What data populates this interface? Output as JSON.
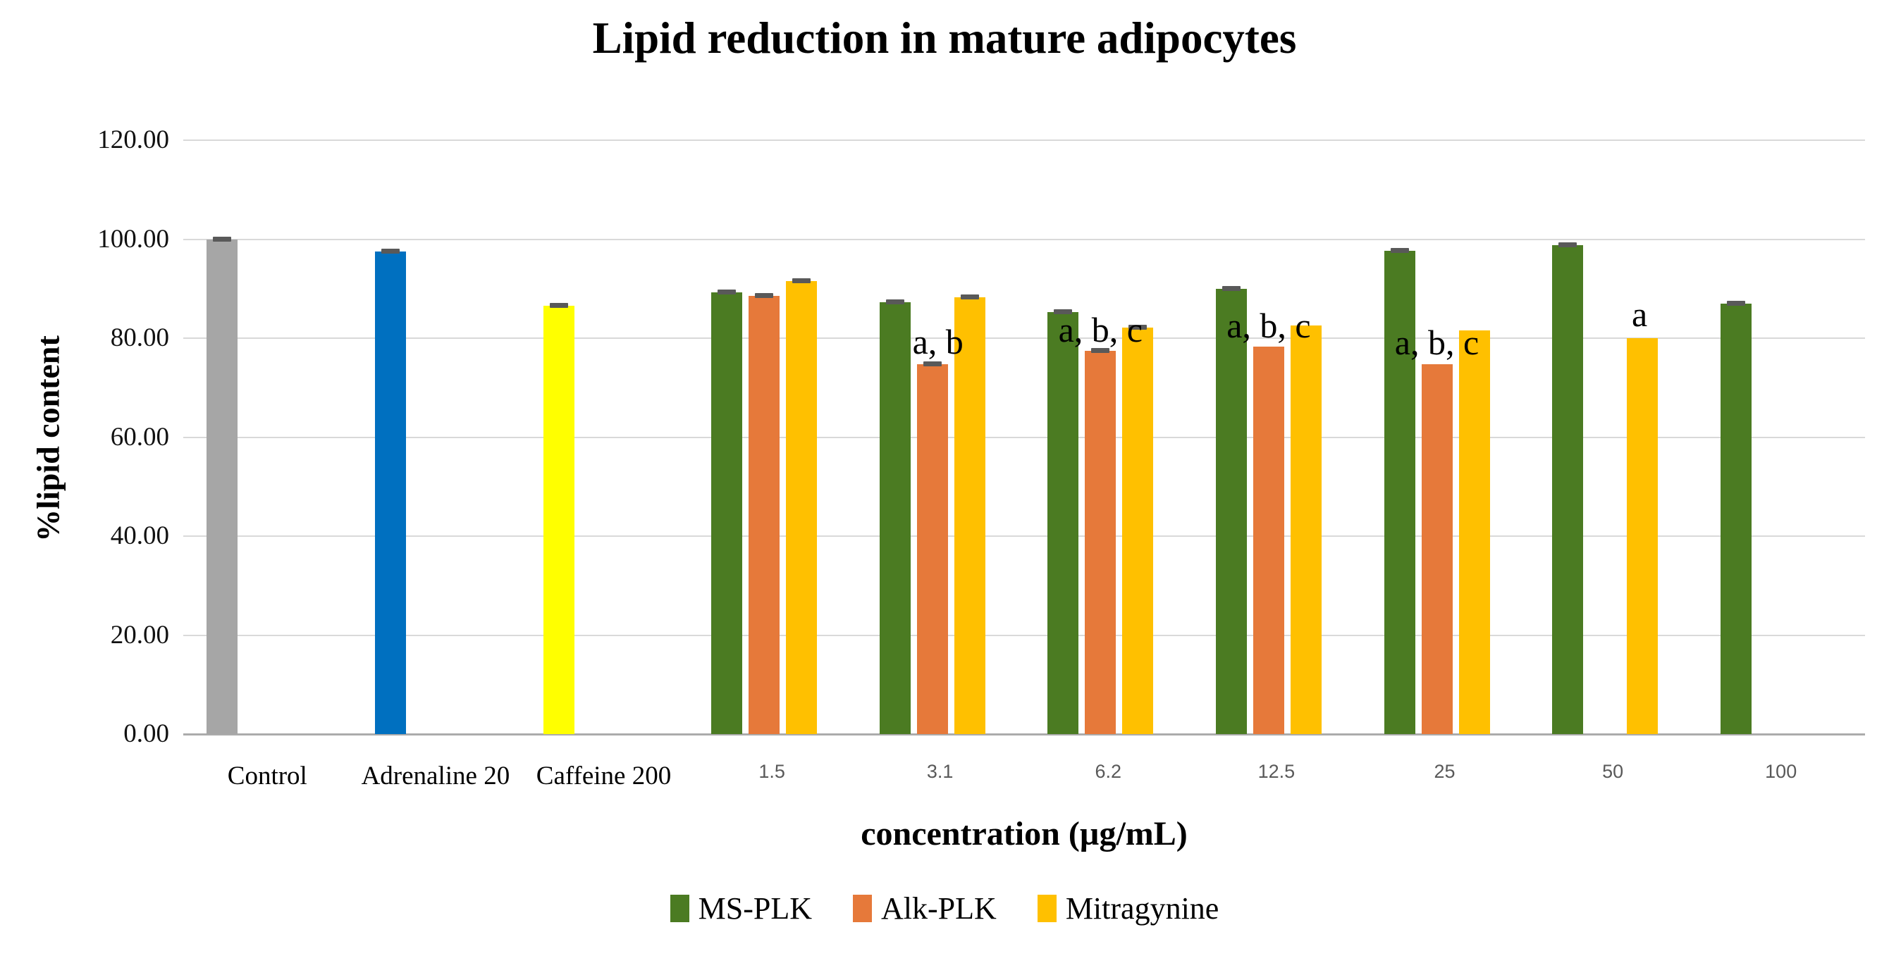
{
  "chart_data": {
    "type": "bar",
    "title": "Lipid reduction in mature adipocytes",
    "xlabel": "concentration (µg/mL)",
    "ylabel": "%lipid content",
    "ylim": [
      0,
      120
    ],
    "ytick_step": 20,
    "ytick_labels": [
      "120.00",
      "100.00",
      "80.00",
      "60.00",
      "40.00",
      "20.00",
      "0.00"
    ],
    "grid": "horizontal",
    "legend_position": "bottom",
    "categories": [
      "Control",
      "Adrenaline 20",
      "Caffeine 200",
      "1.5",
      "3.1",
      "6.2",
      "12.5",
      "25",
      "50",
      "100"
    ],
    "reference_bars": [
      {
        "category": "Control",
        "value": 100.0,
        "color": "#A6A6A6",
        "error_cap": true
      },
      {
        "category": "Adrenaline 20",
        "value": 97.5,
        "color": "#0070C0",
        "error_cap": true
      },
      {
        "category": "Caffeine 200",
        "value": 86.5,
        "color": "#FFFF00",
        "error_cap": true
      }
    ],
    "series": [
      {
        "name": "MS-PLK",
        "color": "#4B7B22",
        "values": [
          null,
          null,
          null,
          89.3,
          87.2,
          85.2,
          89.9,
          97.7,
          98.8,
          87.0
        ],
        "error_caps": [
          false,
          false,
          false,
          true,
          true,
          true,
          true,
          true,
          true,
          true
        ]
      },
      {
        "name": "Alk-PLK",
        "color": "#E6793A",
        "values": [
          null,
          null,
          null,
          88.5,
          74.8,
          77.4,
          78.3,
          74.8,
          null,
          null
        ],
        "error_caps": [
          false,
          false,
          false,
          true,
          true,
          true,
          false,
          false,
          false,
          false
        ]
      },
      {
        "name": "Mitragynine",
        "color": "#FFC000",
        "values": [
          null,
          null,
          null,
          91.5,
          88.2,
          82.2,
          82.6,
          81.6,
          80.0,
          null
        ],
        "error_caps": [
          false,
          false,
          false,
          true,
          true,
          true,
          false,
          false,
          false,
          false
        ]
      }
    ],
    "annotations": [
      {
        "category": "3.1",
        "text": "a, b",
        "anchor_series": "Alk-PLK",
        "dx": 8,
        "bottom_value": 75.8
      },
      {
        "category": "6.2",
        "text": "a, b, c",
        "anchor_series": "Alk-PLK",
        "dx": 0,
        "bottom_value": 78.2
      },
      {
        "category": "12.5",
        "text": "a, b, c",
        "anchor_series": "Alk-PLK",
        "dx": 0,
        "bottom_value": 79.0
      },
      {
        "category": "25",
        "text": "a, b, c",
        "anchor_series": "Alk-PLK",
        "dx": 0,
        "bottom_value": 75.6
      },
      {
        "category": "50",
        "text": "a",
        "anchor_series": "Mitragynine",
        "dx": -4,
        "bottom_value": 81.3
      }
    ],
    "style_colors": {
      "gridline": "#D9D9D9",
      "axis_line": "#ABABAB",
      "error_cap": "#595959"
    }
  },
  "legend": [
    {
      "name": "MS-PLK",
      "color": "#4B7B22"
    },
    {
      "name": "Alk-PLK",
      "color": "#E6793A"
    },
    {
      "name": "Mitragynine",
      "color": "#FFC000"
    }
  ]
}
